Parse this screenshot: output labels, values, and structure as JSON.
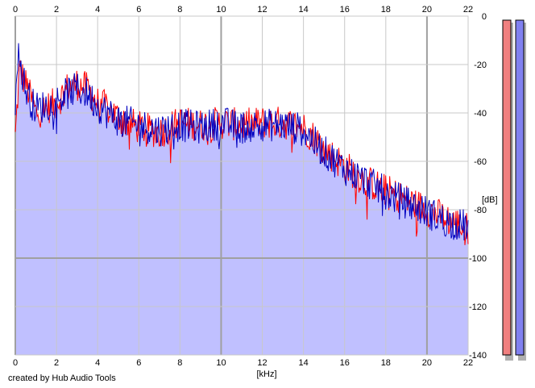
{
  "credit": "created by Hub Audio Tools",
  "chart_data": {
    "type": "area",
    "title": "",
    "xlabel": "[kHz]",
    "ylabel": "[dB]",
    "xlim": [
      0,
      22
    ],
    "ylim": [
      -140,
      0
    ],
    "x_ticks": [
      0,
      2,
      4,
      6,
      8,
      10,
      12,
      14,
      16,
      18,
      20,
      22
    ],
    "y_ticks": [
      0,
      -20,
      -40,
      -60,
      -80,
      -100,
      -120,
      -140
    ],
    "grid": true,
    "x_axis_position": "top and bottom",
    "y_axis_position": "right",
    "fill_color": "#c0c0ff",
    "series": [
      {
        "color": "#ff0000",
        "x": [
          0,
          0.2,
          0.5,
          0.8,
          1,
          1.5,
          2,
          2.5,
          3,
          3.5,
          4,
          4.5,
          5,
          6,
          7,
          8,
          9,
          10,
          11,
          12,
          13,
          14,
          14.5,
          15,
          16,
          17,
          18,
          19,
          20,
          21,
          22
        ],
        "y": [
          -50,
          -22,
          -28,
          -35,
          -40,
          -38,
          -36,
          -30,
          -28,
          -30,
          -36,
          -38,
          -42,
          -46,
          -48,
          -44,
          -45,
          -44,
          -45,
          -44,
          -44,
          -46,
          -50,
          -55,
          -62,
          -68,
          -72,
          -76,
          -80,
          -84,
          -88
        ]
      },
      {
        "color": "#0000c0",
        "x": [
          0,
          0.1,
          0.3,
          0.5,
          0.8,
          1,
          1.5,
          2,
          2.5,
          3,
          3.5,
          4,
          4.5,
          5,
          6,
          7,
          8,
          9,
          10,
          11,
          12,
          13,
          14,
          14.5,
          15,
          16,
          17,
          18,
          19,
          20,
          21,
          22
        ],
        "y": [
          -35,
          -15,
          -22,
          -30,
          -36,
          -38,
          -37,
          -35,
          -32,
          -30,
          -32,
          -37,
          -40,
          -43,
          -45,
          -47,
          -45,
          -46,
          -44,
          -46,
          -45,
          -45,
          -47,
          -52,
          -56,
          -63,
          -68,
          -73,
          -77,
          -81,
          -85,
          -87
        ]
      }
    ]
  },
  "meters": {
    "left_color": "#f08080",
    "right_color": "#8080f0"
  }
}
